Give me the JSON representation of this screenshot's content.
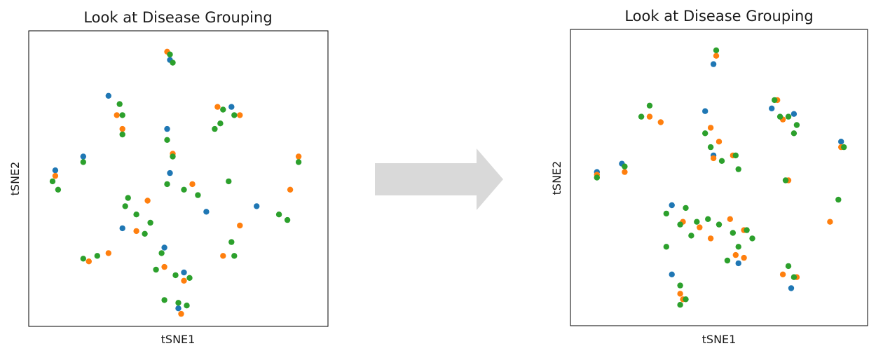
{
  "colors": {
    "series_1": "#1f77b4",
    "series_2": "#ff7f0e",
    "series_3": "#2ca02c",
    "arrow": "#d9d9d9",
    "frame": "#000000"
  },
  "arrow_icon": "right-arrow-icon",
  "chart_data": [
    {
      "type": "scatter",
      "title": "Look at Disease Grouping",
      "xlabel": "tSNE1",
      "ylabel": "tSNE2",
      "xlim": [
        0,
        100
      ],
      "ylim": [
        0,
        100
      ],
      "grid": false,
      "legend": "none",
      "ticks": "hidden",
      "series": [
        {
          "color": "#1f77b4",
          "points": [
            [
              47,
              93
            ],
            [
              25,
              80
            ],
            [
              69,
              76
            ],
            [
              46,
              68
            ],
            [
              16,
              58
            ],
            [
              47,
              52
            ],
            [
              30,
              32
            ],
            [
              60,
              38
            ],
            [
              45,
              25
            ],
            [
              78,
              40
            ],
            [
              52,
              16
            ],
            [
              6,
              53
            ],
            [
              50,
              3
            ]
          ]
        },
        {
          "color": "#ff7f0e",
          "points": [
            [
              46,
              96
            ],
            [
              28,
              73
            ],
            [
              30,
              68
            ],
            [
              64,
              76
            ],
            [
              72,
              73
            ],
            [
              48,
              59
            ],
            [
              6,
              51
            ],
            [
              55,
              48
            ],
            [
              39,
              42
            ],
            [
              35,
              31
            ],
            [
              90,
              46
            ],
            [
              25,
              23
            ],
            [
              18,
              20
            ],
            [
              45,
              18
            ],
            [
              52,
              13
            ],
            [
              66,
              22
            ],
            [
              51,
              1
            ],
            [
              93,
              58
            ],
            [
              72,
              33
            ]
          ]
        },
        {
          "color": "#2ca02c",
          "points": [
            [
              47,
              95
            ],
            [
              48,
              92
            ],
            [
              29,
              77
            ],
            [
              30,
              73
            ],
            [
              30,
              66
            ],
            [
              46,
              64
            ],
            [
              48,
              58
            ],
            [
              66,
              75
            ],
            [
              65,
              70
            ],
            [
              70,
              73
            ],
            [
              63,
              68
            ],
            [
              16,
              56
            ],
            [
              5,
              49
            ],
            [
              7,
              46
            ],
            [
              46,
              48
            ],
            [
              52,
              46
            ],
            [
              57,
              44
            ],
            [
              32,
              43
            ],
            [
              31,
              40
            ],
            [
              35,
              37
            ],
            [
              40,
              34
            ],
            [
              38,
              30
            ],
            [
              44,
              23
            ],
            [
              42,
              17
            ],
            [
              49,
              15
            ],
            [
              54,
              14
            ],
            [
              21,
              22
            ],
            [
              16,
              21
            ],
            [
              50,
              5
            ],
            [
              53,
              4
            ],
            [
              45,
              6
            ],
            [
              68,
              49
            ],
            [
              69,
              27
            ],
            [
              70,
              22
            ],
            [
              86,
              37
            ],
            [
              89,
              35
            ],
            [
              93,
              56
            ]
          ]
        }
      ]
    },
    {
      "type": "scatter",
      "title": "Look at Disease Grouping",
      "xlabel": "tSNE1",
      "ylabel": "tSNE2",
      "xlim": [
        0,
        100
      ],
      "ylim": [
        0,
        100
      ],
      "grid": false,
      "legend": "none",
      "ticks": "hidden",
      "series": [
        {
          "color": "#1f77b4",
          "points": [
            [
              48,
              91
            ],
            [
              69,
              75
            ],
            [
              45,
              74
            ],
            [
              48,
              58
            ],
            [
              6,
              52
            ],
            [
              15,
              55
            ],
            [
              33,
              40
            ],
            [
              57,
              19
            ],
            [
              33,
              15
            ],
            [
              77,
              73
            ],
            [
              94,
              63
            ],
            [
              76,
              10
            ]
          ]
        },
        {
          "color": "#ff7f0e",
          "points": [
            [
              49,
              94
            ],
            [
              71,
              78
            ],
            [
              73,
              71
            ],
            [
              25,
              72
            ],
            [
              29,
              70
            ],
            [
              47,
              68
            ],
            [
              50,
              63
            ],
            [
              48,
              57
            ],
            [
              55,
              58
            ],
            [
              6,
              51
            ],
            [
              16,
              52
            ],
            [
              37,
              34
            ],
            [
              43,
              32
            ],
            [
              47,
              28
            ],
            [
              54,
              35
            ],
            [
              59,
              31
            ],
            [
              56,
              22
            ],
            [
              59,
              21
            ],
            [
              75,
              49
            ],
            [
              36,
              8
            ],
            [
              37,
              6
            ],
            [
              73,
              15
            ],
            [
              78,
              14
            ],
            [
              90,
              34
            ],
            [
              94,
              61
            ]
          ]
        },
        {
          "color": "#2ca02c",
          "points": [
            [
              49,
              96
            ],
            [
              75,
              72
            ],
            [
              78,
              69
            ],
            [
              77,
              66
            ],
            [
              72,
              72
            ],
            [
              25,
              76
            ],
            [
              22,
              72
            ],
            [
              45,
              66
            ],
            [
              47,
              61
            ],
            [
              51,
              56
            ],
            [
              56,
              58
            ],
            [
              57,
              53
            ],
            [
              6,
              50
            ],
            [
              16,
              54
            ],
            [
              74,
              49
            ],
            [
              31,
              37
            ],
            [
              36,
              33
            ],
            [
              42,
              34
            ],
            [
              46,
              35
            ],
            [
              50,
              33
            ],
            [
              55,
              30
            ],
            [
              60,
              31
            ],
            [
              62,
              28
            ],
            [
              57,
              25
            ],
            [
              53,
              20
            ],
            [
              36,
              11
            ],
            [
              36,
              4
            ],
            [
              38,
              6
            ],
            [
              40,
              29
            ],
            [
              31,
              25
            ],
            [
              70,
              78
            ],
            [
              75,
              18
            ],
            [
              77,
              14
            ],
            [
              93,
              42
            ],
            [
              95,
              61
            ],
            [
              38,
              39
            ]
          ]
        }
      ]
    }
  ]
}
